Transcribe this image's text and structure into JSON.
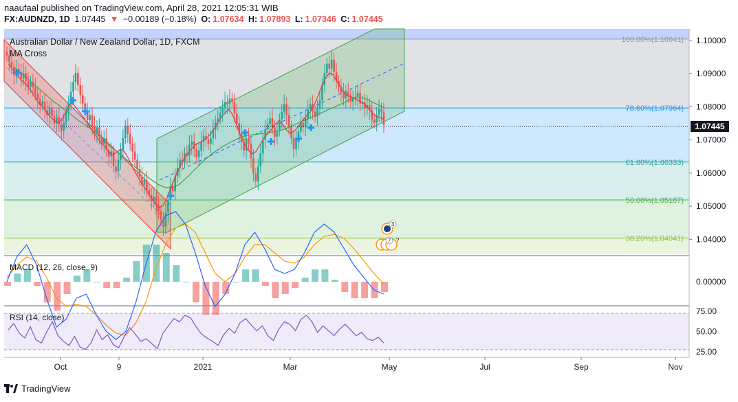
{
  "header": {
    "published_line": "naaufaal published on TradingView.com, April 28, 2021 12:05:31 WIB",
    "symbol": "FX:AUDNZD, 1D",
    "price": "1.07445",
    "change_arrow": "▼",
    "change": "−0.00189 (−0.18%)",
    "open_label": "O:",
    "open": "1.07634",
    "high_label": "H:",
    "high": "1.07893",
    "low_label": "L:",
    "low": "1.07346",
    "close_label": "C:",
    "close": "1.07445"
  },
  "chart_data": [
    {
      "type": "candlestick",
      "title": "Australian Dollar / New Zealand Dollar, 1D, FXCM",
      "indicator_label": "MA Cross",
      "ylim": [
        1.0355,
        1.1035
      ],
      "y_ticks": [
        "1.10000",
        "1.09000",
        "1.08000",
        "1.07000",
        "1.06000",
        "1.05000",
        "1.04000"
      ],
      "last_price": "1.07445",
      "fib_levels": [
        {
          "label": "100.00%(1.10041)",
          "value": 1.10041,
          "color": "#9598a1"
        },
        {
          "label": "78.60%(1.07964)",
          "value": 1.07964,
          "color": "#2196f3"
        },
        {
          "label": "61.80%(1.06333)",
          "value": 1.06333,
          "color": "#26a69a"
        },
        {
          "label": "50.00%(1.05187)",
          "value": 1.05187,
          "color": "#4caf50"
        },
        {
          "label": "38.20%(1.04041)",
          "value": 1.04041,
          "color": "#8bc34a"
        }
      ],
      "closes": [
        1.0955,
        1.0935,
        1.092,
        1.0895,
        1.0915,
        1.0905,
        1.0885,
        1.0902,
        1.0878,
        1.086,
        1.0875,
        1.0858,
        1.084,
        1.0822,
        1.0805,
        1.0815,
        1.079,
        1.0775,
        1.0795,
        1.0772,
        1.075,
        1.0768,
        1.0745,
        1.0728,
        1.0752,
        1.0785,
        1.081,
        1.0845,
        1.0875,
        1.0902,
        1.0865,
        1.0835,
        1.081,
        1.0785,
        1.076,
        1.0775,
        1.0742,
        1.072,
        1.0738,
        1.071,
        1.0688,
        1.0705,
        1.067,
        1.065,
        1.0665,
        1.062,
        1.0605,
        1.064,
        1.067,
        1.0705,
        1.0742,
        1.0718,
        1.0688,
        1.0665,
        1.064,
        1.0612,
        1.0588,
        1.0565,
        1.0578,
        1.055,
        1.0532,
        1.0515,
        1.0528,
        1.0505,
        1.0485,
        1.0458,
        1.0438,
        1.048,
        1.052,
        1.056,
        1.0545,
        1.059,
        1.0615,
        1.064,
        1.0632,
        1.066,
        1.0652,
        1.0685,
        1.0695,
        1.0672,
        1.0648,
        1.0668,
        1.0695,
        1.0712,
        1.0702,
        1.0688,
        1.0705,
        1.0732,
        1.0752,
        1.0765,
        1.0782,
        1.0798,
        1.0815,
        1.0808,
        1.0825,
        1.0815,
        1.078,
        1.075,
        1.0722,
        1.0695,
        1.0668,
        1.0705,
        1.0688,
        1.0645,
        1.0598,
        1.0575,
        1.062,
        1.066,
        1.07,
        1.0732,
        1.0748,
        1.0765,
        1.0738,
        1.071,
        1.0728,
        1.0762,
        1.0785,
        1.0808,
        1.0775,
        1.074,
        1.0705,
        1.0672,
        1.07,
        1.0725,
        1.0752,
        1.0738,
        1.0765,
        1.0792,
        1.0808,
        1.0785,
        1.077,
        1.0795,
        1.082,
        1.0865,
        1.0902,
        1.093,
        1.0915,
        1.0942,
        1.0905,
        1.0878,
        1.086,
        1.0842,
        1.0825,
        1.0845,
        1.0835,
        1.0815,
        1.0825,
        1.083,
        1.0842,
        1.081,
        1.0815,
        1.0795,
        1.0805,
        1.079,
        1.076,
        1.0752,
        1.0775,
        1.0792,
        1.0785,
        1.07445
      ],
      "ma_fast": [
        1.093,
        1.0915,
        1.0902,
        1.0885,
        1.0875,
        1.0862,
        1.0845,
        1.0828,
        1.081,
        1.0798,
        1.0782,
        1.0768,
        1.0758,
        1.075,
        1.0765,
        1.0788,
        1.081,
        1.0805,
        1.079,
        1.0775,
        1.0758,
        1.074,
        1.0722,
        1.0706,
        1.069,
        1.068,
        1.0662,
        1.0655,
        1.0662,
        1.0672,
        1.0665,
        1.0645,
        1.062,
        1.0598,
        1.0578,
        1.056,
        1.0542,
        1.0525,
        1.0506,
        1.0495,
        1.0502,
        1.0525,
        1.0555,
        1.0585,
        1.0612,
        1.0635,
        1.0655,
        1.0668,
        1.0682,
        1.069,
        1.0695,
        1.0702,
        1.0715,
        1.073,
        1.075,
        1.0768,
        1.0782,
        1.0792,
        1.0775,
        1.0745,
        1.0712,
        1.0688,
        1.0668,
        1.0658,
        1.0665,
        1.0685,
        1.0705,
        1.072,
        1.0732,
        1.0748,
        1.0758,
        1.0745,
        1.0728,
        1.072,
        1.0728,
        1.0742,
        1.0758,
        1.0772,
        1.0785,
        1.0805,
        1.0832,
        1.0862,
        1.0888,
        1.0902,
        1.0895,
        1.0875,
        1.0855,
        1.0838,
        1.0832,
        1.0828,
        1.0822,
        1.0815,
        1.0808,
        1.0795,
        1.0782,
        1.0772,
        1.0768,
        1.0762
      ],
      "ma_slow": [
        1.092,
        1.0908,
        1.0895,
        1.0882,
        1.0868,
        1.0855,
        1.0842,
        1.0828,
        1.0815,
        1.0805,
        1.0792,
        1.0782,
        1.077,
        1.0758,
        1.0748,
        1.0738,
        1.0725,
        1.0712,
        1.0698,
        1.0685,
        1.0672,
        1.066,
        1.0648,
        1.0635,
        1.0622,
        1.061,
        1.0598,
        1.0585,
        1.0575,
        1.0565,
        1.0558,
        1.0555,
        1.0558,
        1.0565,
        1.0578,
        1.0592,
        1.0608,
        1.0622,
        1.0638,
        1.065,
        1.0662,
        1.0672,
        1.0682,
        1.069,
        1.0698,
        1.0705,
        1.071,
        1.0714,
        1.0716,
        1.0718,
        1.072,
        1.0722,
        1.0725,
        1.0728,
        1.0732,
        1.0738,
        1.0745,
        1.0752,
        1.0758,
        1.0765,
        1.0772,
        1.0778,
        1.0785,
        1.0792,
        1.0798,
        1.0805,
        1.0812,
        1.082,
        1.0826,
        1.0828,
        1.0826,
        1.082,
        1.0812,
        1.0805,
        1.0798
      ]
    },
    {
      "type": "histogram",
      "title": "MACD (12, 26, close, 9)",
      "y_ticks": [
        "0.00000"
      ],
      "macd_line": [
        0.0,
        0.0012,
        0.0018,
        0.0008,
        -0.0008,
        -0.0022,
        -0.0018,
        -0.0008,
        -0.0006,
        -0.0016,
        -0.0024,
        -0.0028,
        -0.0024,
        -0.001,
        0.0008,
        0.0024,
        0.0032,
        0.0034,
        0.0028,
        0.0014,
        -0.0002,
        -0.0012,
        -0.0006,
        0.0004,
        0.0018,
        0.0024,
        0.0016,
        0.0006,
        0.0004,
        0.0006,
        0.0014,
        0.0024,
        0.0028,
        0.0024,
        0.0016,
        0.0008,
        0.0002,
        -0.0004,
        -0.0006
      ],
      "signal_line": [
        0.0002,
        0.0008,
        0.0012,
        0.001,
        0.0002,
        -0.0008,
        -0.0012,
        -0.0011,
        -0.0012,
        -0.0016,
        -0.0021,
        -0.0025,
        -0.0026,
        -0.002,
        -0.001,
        0.0006,
        0.0018,
        0.0026,
        0.0028,
        0.0024,
        0.0014,
        0.0004,
        0.0,
        0.0004,
        0.0012,
        0.0018,
        0.0018,
        0.0014,
        0.001,
        0.0009,
        0.0012,
        0.0018,
        0.0022,
        0.0023,
        0.0021,
        0.0016,
        0.001,
        0.0004,
        -0.0001
      ]
    },
    {
      "type": "line",
      "title": "RSI (14, close)",
      "y_ticks": [
        "75.00",
        "50.00",
        "25.00"
      ],
      "ylim": [
        20,
        80
      ],
      "bands": [
        30,
        70
      ],
      "values": [
        52,
        60,
        48,
        42,
        56,
        40,
        36,
        50,
        62,
        45,
        38,
        33,
        44,
        31,
        28,
        36,
        52,
        40,
        46,
        34,
        30,
        44,
        55,
        47,
        38,
        41,
        35,
        29,
        48,
        57,
        66,
        62,
        70,
        67,
        56,
        47,
        42,
        38,
        33,
        46,
        54,
        48,
        61,
        66,
        58,
        51,
        57,
        45,
        39,
        53,
        62,
        59,
        51,
        65,
        70,
        62,
        49,
        57,
        51,
        45,
        53,
        59,
        52,
        45,
        49,
        41,
        39,
        43,
        36
      ]
    }
  ],
  "x_axis": {
    "labels": [
      "Oct",
      "9",
      "2021",
      "Mar",
      "May",
      "Jul",
      "Sep",
      "Nov"
    ]
  },
  "colors": {
    "up": "#26a69a",
    "down": "#ef5350",
    "ma_fast": "#e53935",
    "ma_slow": "#43a047",
    "macd": "#2962ff",
    "signal": "#ff9800",
    "rsi": "#7e57c2"
  },
  "footer": {
    "brand": "TradingView"
  }
}
